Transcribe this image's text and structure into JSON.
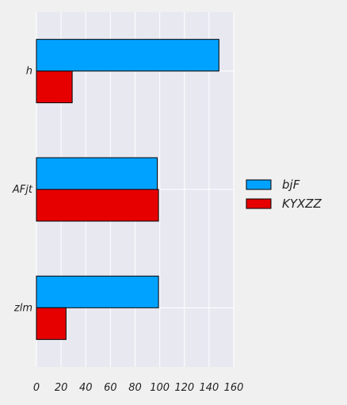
{
  "chart_data": {
    "type": "bar",
    "orientation": "horizontal",
    "categories": [
      "h",
      "AFjt",
      "zlm"
    ],
    "series": [
      {
        "name": "bjF",
        "color": "#00a2ff",
        "values": [
          148,
          98,
          99
        ]
      },
      {
        "name": "KYXZZ",
        "color": "#e60000",
        "values": [
          29,
          99,
          24
        ]
      }
    ],
    "xlim": [
      0,
      160
    ],
    "xticks": [
      0,
      20,
      40,
      60,
      80,
      100,
      120,
      140,
      160
    ],
    "grid": true,
    "legend_position": "right",
    "title": "",
    "xlabel": "",
    "ylabel": "",
    "colors": {
      "plot_background": "#e8e8f1",
      "figure_background": "#f0f0f0",
      "grid": "#ffffff",
      "bar_edge": "#000000"
    }
  }
}
